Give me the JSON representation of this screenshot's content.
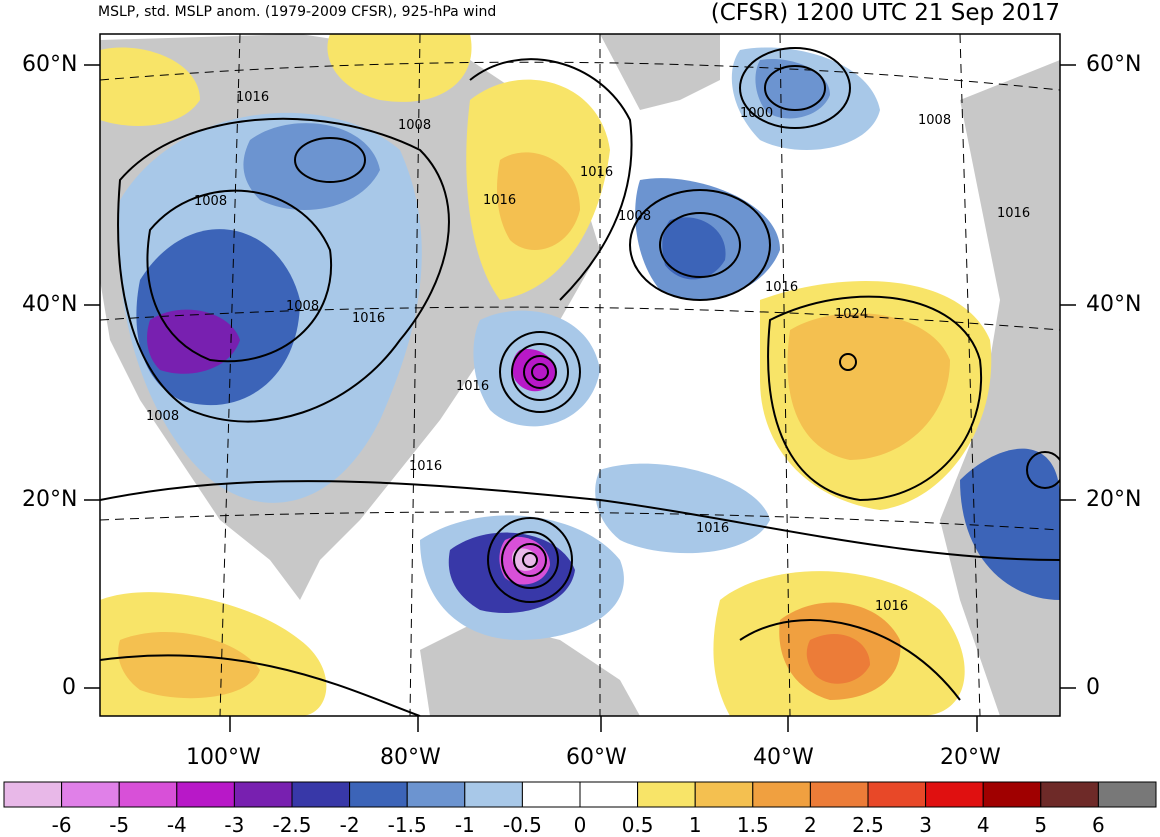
{
  "header": {
    "left_title": "MSLP, std. MSLP anom. (1979-2009 CFSR), 925-hPa wind",
    "right_title": "(CFSR) 1200 UTC 21 Sep 2017"
  },
  "axes": {
    "lat_left": [
      "60°N",
      "40°N",
      "20°N",
      "0"
    ],
    "lat_right": [
      "60°N",
      "40°N",
      "20°N",
      "0"
    ],
    "lon_bottom": [
      "100°W",
      "80°W",
      "60°W",
      "40°W",
      "20°W"
    ]
  },
  "isobar_labels": [
    "1016",
    "1008",
    "1016",
    "1008",
    "1016",
    "1008",
    "1016",
    "1016",
    "1008",
    "1016",
    "1016",
    "1024",
    "1016",
    "1016",
    "1000",
    "1008",
    "1016",
    "1008"
  ],
  "colorbar": {
    "ticks": [
      "-6",
      "-5",
      "-4",
      "-3",
      "-2.5",
      "-2",
      "-1.5",
      "-1",
      "-0.5",
      "0",
      "0.5",
      "1",
      "1.5",
      "2",
      "2.5",
      "3",
      "4",
      "5",
      "6"
    ],
    "colors": [
      "#e8b8e8",
      "#e080e8",
      "#d850d8",
      "#b818c8",
      "#7820b0",
      "#3838a8",
      "#3c64b8",
      "#6c94d0",
      "#a8c8e8",
      "#ffffff",
      "#ffffff",
      "#f8e468",
      "#f4c050",
      "#f0a040",
      "#ec7c38",
      "#e84828",
      "#e01010",
      "#a00000",
      "#6e2a28",
      "#787878"
    ]
  }
}
